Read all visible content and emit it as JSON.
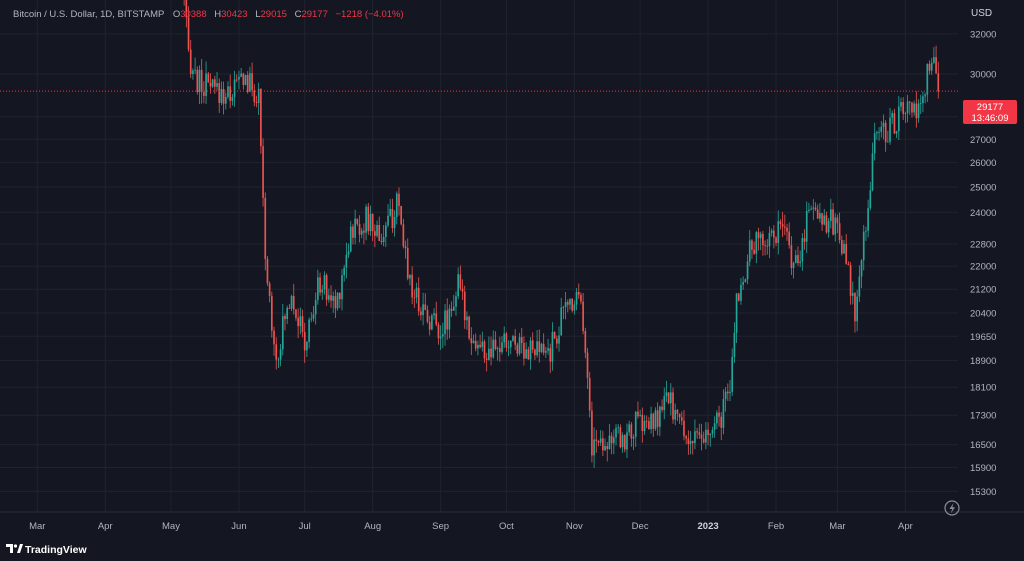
{
  "header": {
    "symbol": "Bitcoin / U.S. Dollar, 1D, BITSTAMP",
    "o_label": "O",
    "o_value": "30388",
    "h_label": "H",
    "h_value": "30423",
    "l_label": "L",
    "l_value": "29015",
    "c_label": "C",
    "c_value": "29177",
    "change": "−1218 (−4.01%)"
  },
  "price_axis": {
    "currency": "USD",
    "ticks": [
      "32000",
      "30000",
      "28000",
      "27000",
      "26000",
      "25000",
      "24000",
      "22800",
      "22000",
      "21200",
      "20400",
      "19650",
      "18900",
      "18100",
      "17300",
      "16500",
      "15900",
      "15300"
    ]
  },
  "time_axis": {
    "labels": [
      "Mar",
      "Apr",
      "May",
      "Jun",
      "Jul",
      "Aug",
      "Sep",
      "Oct",
      "Nov",
      "Dec",
      "2023",
      "Feb",
      "Mar",
      "Apr"
    ]
  },
  "last_price": {
    "value": "29177",
    "countdown": "13:46:09"
  },
  "footer": {
    "brand": "TradingView"
  },
  "icons": {
    "replay": "lightning-icon",
    "logo": "tradingview-logo-icon"
  },
  "colors": {
    "background": "#141721",
    "up": "#26a69a",
    "down": "#ef5350",
    "last_price": "#f23645",
    "grid": "#1f2330",
    "text": "#b2b5be"
  },
  "chart_data": {
    "type": "candlestick",
    "scale": "log",
    "title": "Bitcoin / U.S. Dollar, 1D, BITSTAMP",
    "ylim": [
      14800,
      33800
    ],
    "x_range": [
      "2022-02-12",
      "2023-04-25"
    ],
    "last_close": 29177,
    "grid": true,
    "legend": "none",
    "weekly_closes": [
      {
        "date": "2022-05-05",
        "close": 36000
      },
      {
        "date": "2022-05-09",
        "close": 31000
      },
      {
        "date": "2022-05-13",
        "close": 29600
      },
      {
        "date": "2022-05-20",
        "close": 29200
      },
      {
        "date": "2022-05-27",
        "close": 29000
      },
      {
        "date": "2022-06-03",
        "close": 29900
      },
      {
        "date": "2022-06-10",
        "close": 28800
      },
      {
        "date": "2022-06-13",
        "close": 22100
      },
      {
        "date": "2022-06-18",
        "close": 19000
      },
      {
        "date": "2022-06-25",
        "close": 21200
      },
      {
        "date": "2022-07-01",
        "close": 19300
      },
      {
        "date": "2022-07-08",
        "close": 21500
      },
      {
        "date": "2022-07-15",
        "close": 20600
      },
      {
        "date": "2022-07-22",
        "close": 23300
      },
      {
        "date": "2022-07-29",
        "close": 23700
      },
      {
        "date": "2022-08-05",
        "close": 23100
      },
      {
        "date": "2022-08-12",
        "close": 24200
      },
      {
        "date": "2022-08-19",
        "close": 21200
      },
      {
        "date": "2022-08-26",
        "close": 20300
      },
      {
        "date": "2022-09-02",
        "close": 19900
      },
      {
        "date": "2022-09-09",
        "close": 21300
      },
      {
        "date": "2022-09-16",
        "close": 19500
      },
      {
        "date": "2022-09-23",
        "close": 19000
      },
      {
        "date": "2022-09-30",
        "close": 19400
      },
      {
        "date": "2022-10-07",
        "close": 19500
      },
      {
        "date": "2022-10-14",
        "close": 19100
      },
      {
        "date": "2022-10-21",
        "close": 19200
      },
      {
        "date": "2022-10-28",
        "close": 20600
      },
      {
        "date": "2022-11-04",
        "close": 21200
      },
      {
        "date": "2022-11-09",
        "close": 16500
      },
      {
        "date": "2022-11-16",
        "close": 16700
      },
      {
        "date": "2022-11-23",
        "close": 16600
      },
      {
        "date": "2022-11-30",
        "close": 17100
      },
      {
        "date": "2022-12-07",
        "close": 17000
      },
      {
        "date": "2022-12-14",
        "close": 17800
      },
      {
        "date": "2022-12-21",
        "close": 16800
      },
      {
        "date": "2022-12-28",
        "close": 16500
      },
      {
        "date": "2023-01-04",
        "close": 16900
      },
      {
        "date": "2023-01-11",
        "close": 17900
      },
      {
        "date": "2023-01-14",
        "close": 20900
      },
      {
        "date": "2023-01-21",
        "close": 22700
      },
      {
        "date": "2023-01-28",
        "close": 23100
      },
      {
        "date": "2023-02-04",
        "close": 23300
      },
      {
        "date": "2023-02-11",
        "close": 21800
      },
      {
        "date": "2023-02-16",
        "close": 24400
      },
      {
        "date": "2023-02-23",
        "close": 23800
      },
      {
        "date": "2023-03-02",
        "close": 23400
      },
      {
        "date": "2023-03-09",
        "close": 20300
      },
      {
        "date": "2023-03-12",
        "close": 22100
      },
      {
        "date": "2023-03-15",
        "close": 24400
      },
      {
        "date": "2023-03-18",
        "close": 27200
      },
      {
        "date": "2023-03-25",
        "close": 27500
      },
      {
        "date": "2023-04-01",
        "close": 28400
      },
      {
        "date": "2023-04-08",
        "close": 28000
      },
      {
        "date": "2023-04-11",
        "close": 30200
      },
      {
        "date": "2023-04-14",
        "close": 30400
      },
      {
        "date": "2023-04-16",
        "close": 29177
      }
    ]
  }
}
